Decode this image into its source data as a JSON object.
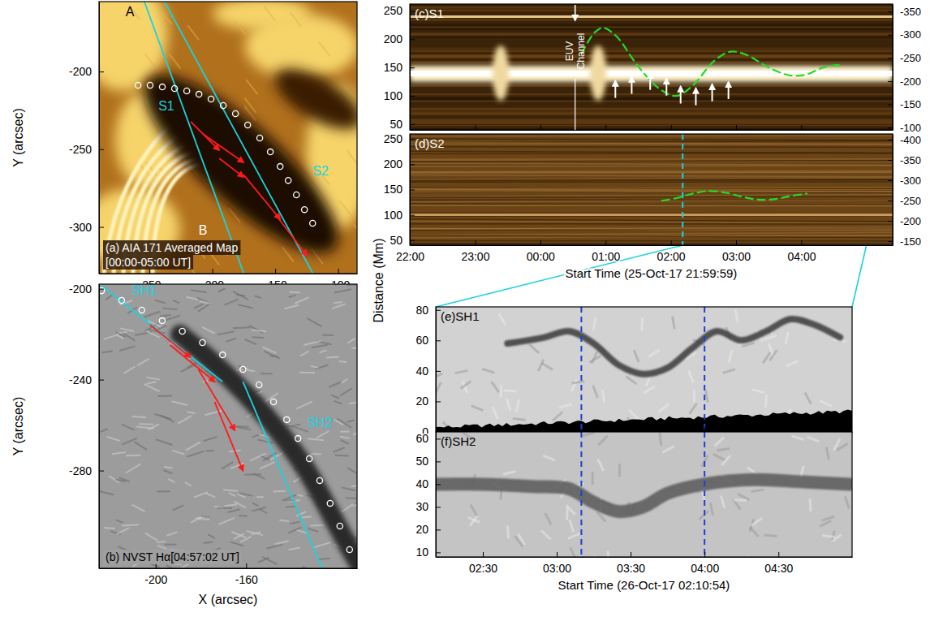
{
  "chart_data": [
    {
      "type": "map",
      "title": "(a) AIA 171 Averaged Map",
      "subtitle": "[00:00-05:00 UT]",
      "y_label": "Y (arcsec)",
      "xlim": [
        -290,
        -85
      ],
      "ylim": [
        -330,
        -155
      ],
      "xticks": [
        -250,
        -200,
        -150,
        -100
      ],
      "yticks": [
        -300,
        -250,
        -200
      ],
      "track": {
        "color": "#ffffff",
        "marker": "circle",
        "x": [
          -259.0,
          -249.4,
          -239.7,
          -230.0,
          -220.3,
          -210.6,
          -201.0,
          -191.3,
          -181.6,
          -171.9,
          -162.3,
          -153.9,
          -146.1,
          -139.7,
          -133.2,
          -126.8,
          -120.3
        ],
        "y": [
          -208.8,
          -208.8,
          -209.9,
          -210.9,
          -212.5,
          -214.6,
          -217.7,
          -221.9,
          -227.1,
          -234.4,
          -242.8,
          -251.7,
          -261.1,
          -270.0,
          -279.3,
          -288.8,
          -297.6
        ]
      },
      "slits": [
        {
          "label": "S1",
          "color": "#19d3e0",
          "x": [
            -254,
            -175
          ],
          "y": [
            -155,
            -330
          ],
          "label_x": -236.5,
          "label_y": -222
        },
        {
          "label": "S2",
          "color": "#19d3e0",
          "x": [
            -238,
            -120
          ],
          "y": [
            -155,
            -330
          ],
          "label_x": -114,
          "label_y": -263.7
        }
      ],
      "arrows": {
        "color": "#ff1a1a",
        "x0": [
          -217.1,
          -207.4,
          -194.5,
          -175.2,
          -149.4
        ],
        "y0": [
          -232.3,
          -240.2,
          -255.8,
          -266.3,
          -292.4
        ],
        "x1": [
          -194.5,
          -175.2,
          -175.2,
          -146.1,
          -124.8
        ],
        "y1": [
          -250.6,
          -258.4,
          -267.9,
          -295.0,
          -318.5
        ]
      },
      "annotations": [
        {
          "text": "A",
          "x": -265.5,
          "y": -161.3,
          "color": "#000000"
        },
        {
          "text": "B",
          "x": -207.5,
          "y": -302,
          "color": "#ffffff"
        }
      ]
    },
    {
      "type": "map",
      "title": "(b) NVST Hα[04:57:02 UT]",
      "x_label": "X (arcsec)",
      "y_label": "Y (arcsec)",
      "xlim": [
        -225,
        -111
      ],
      "ylim": [
        -323,
        -198
      ],
      "xticks": [
        -200,
        -160
      ],
      "yticks": [
        -280,
        -240,
        -200
      ],
      "track": {
        "color": "#ffffff",
        "marker": "circle",
        "x": [
          -223.9,
          -215.0,
          -206.1,
          -197.1,
          -188.2,
          -179.3,
          -170.4,
          -161.4,
          -154.3,
          -147.9,
          -142.1,
          -137.1,
          -132.1,
          -127.5,
          -122.9,
          -118.6,
          -114.3
        ],
        "y": [
          -200.9,
          -205.1,
          -209.4,
          -214.1,
          -218.7,
          -223.7,
          -229.1,
          -235.5,
          -242.3,
          -249.8,
          -257.6,
          -265.9,
          -274.8,
          -284.4,
          -294.4,
          -304.4,
          -314.8
        ]
      },
      "slits": [
        {
          "label": "SH1",
          "color": "#19d3e0",
          "x": [
            -223.9,
            -170.4
          ],
          "y": [
            -198.7,
            -240.9
          ],
          "label_x": -205,
          "label_y": -200.5
        },
        {
          "label": "SH2",
          "color": "#19d3e0",
          "x": [
            -161.4,
            -126.4
          ],
          "y": [
            -240.9,
            -323
          ],
          "label_x": -127.5,
          "label_y": -258.7
        }
      ],
      "arrows": {
        "color": "#ff1a1a",
        "x0": [
          -202.5,
          -193.6,
          -181.1,
          -173.9
        ],
        "y0": [
          -215.9,
          -224.8,
          -235.5,
          -249.8
        ],
        "x1": [
          -184.6,
          -173.9,
          -165.0,
          -161.4
        ],
        "y1": [
          -230.1,
          -240.9,
          -262.3,
          -280.1
        ]
      }
    },
    {
      "type": "timeslice",
      "title": "(c)S1",
      "tick_labels": "y",
      "xlim": [
        "2017-10-25T21:59:59",
        "2017-10-26T05:24:00"
      ],
      "ylim": [
        40,
        262
      ],
      "y2lim": [
        -95,
        -366
      ],
      "xticks": [
        {
          "value": "2017-10-25T22:00:00",
          "label": "22:00"
        },
        {
          "value": "2017-10-25T23:00:00",
          "label": "23:00"
        },
        {
          "value": "2017-10-26T00:00:00",
          "label": "00:00"
        },
        {
          "value": "2017-10-26T01:00:00",
          "label": "01:00"
        },
        {
          "value": "2017-10-26T02:00:00",
          "label": "02:00"
        },
        {
          "value": "2017-10-26T03:00:00",
          "label": "03:00"
        },
        {
          "value": "2017-10-26T04:00:00",
          "label": "04:00"
        }
      ],
      "yticks": [
        50,
        100,
        150,
        200,
        250
      ],
      "y2ticks": [
        -350,
        -300,
        -250,
        -200,
        -150,
        -100
      ],
      "series": [
        {
          "type": "line",
          "color": "#22dd22",
          "line_style": "dashed",
          "x": [
            "2017-10-26T00:38:00",
            "2017-10-26T00:50:00",
            "2017-10-26T00:58:00",
            "2017-10-26T01:10:00",
            "2017-10-26T01:30:00",
            "2017-10-26T01:50:00",
            "2017-10-26T02:05:00",
            "2017-10-26T02:20:00",
            "2017-10-26T02:40:00",
            "2017-10-26T02:55:00",
            "2017-10-26T03:10:00",
            "2017-10-26T03:30:00",
            "2017-10-26T03:50:00",
            "2017-10-26T04:05:00",
            "2017-10-26T04:20:00",
            "2017-10-26T04:35:00"
          ],
          "values": [
            175,
            212,
            220,
            205,
            152,
            112,
            100,
            118,
            162,
            178,
            172,
            150,
            136,
            138,
            150,
            155
          ]
        }
      ],
      "arrows": {
        "color": "#ffffff",
        "x": [
          "2017-10-26T01:09:00",
          "2017-10-26T01:24:00",
          "2017-10-26T01:41:00",
          "2017-10-26T01:56:00",
          "2017-10-26T02:09:00",
          "2017-10-26T02:23:00",
          "2017-10-26T02:38:00",
          "2017-10-26T02:53:00"
        ],
        "y": [
          128,
          135,
          142,
          132,
          118,
          115,
          122,
          126
        ]
      },
      "euv_channel": {
        "text": "EUV Channel",
        "x": "2017-10-26T00:32:00",
        "color": "#ffffff"
      }
    },
    {
      "type": "timeslice",
      "title": "(d)S2",
      "x_label": "Start Time (25-Oct-17 21:59:59)",
      "xlim": [
        "2017-10-25T21:59:59",
        "2017-10-26T05:24:00"
      ],
      "ylim": [
        40,
        260
      ],
      "y2lim": [
        -140,
        -414
      ],
      "xticks": [
        {
          "value": "2017-10-25T22:00:00",
          "label": "22:00"
        },
        {
          "value": "2017-10-25T23:00:00",
          "label": "23:00"
        },
        {
          "value": "2017-10-26T00:00:00",
          "label": "00:00"
        },
        {
          "value": "2017-10-26T01:00:00",
          "label": "01:00"
        },
        {
          "value": "2017-10-26T02:00:00",
          "label": "02:00"
        },
        {
          "value": "2017-10-26T03:00:00",
          "label": "03:00"
        },
        {
          "value": "2017-10-26T04:00:00",
          "label": "04:00"
        }
      ],
      "yticks": [
        50,
        100,
        150,
        200,
        250
      ],
      "y2ticks": [
        -400,
        -350,
        -300,
        -250,
        -200,
        -150
      ],
      "series": [
        {
          "type": "line",
          "color": "#22dd22",
          "line_style": "dashed",
          "x": [
            "2017-10-26T01:52:00",
            "2017-10-26T02:05:00",
            "2017-10-26T02:20:00",
            "2017-10-26T02:35:00",
            "2017-10-26T02:50:00",
            "2017-10-26T03:05:00",
            "2017-10-26T03:20:00",
            "2017-10-26T03:35:00",
            "2017-10-26T03:50:00",
            "2017-10-26T04:05:00"
          ],
          "values": [
            128,
            133,
            142,
            147,
            144,
            136,
            130,
            131,
            137,
            142
          ]
        }
      ],
      "vlines": {
        "color": "#19d3e0",
        "line_style": "dashed",
        "x": [
          "2017-10-26T02:10:54"
        ]
      }
    },
    {
      "type": "timeslice",
      "title": "(e)SH1",
      "y_label": "Distance (Mm)",
      "tick_labels": "y",
      "xlim": [
        "2017-10-26T02:10:54",
        "2017-10-26T04:59:54"
      ],
      "ylim": [
        0,
        82
      ],
      "xticks": [
        {
          "value": "2017-10-26T02:30:00",
          "label": "02:30"
        },
        {
          "value": "2017-10-26T03:00:00",
          "label": "03:00"
        },
        {
          "value": "2017-10-26T03:30:00",
          "label": "03:30"
        },
        {
          "value": "2017-10-26T04:00:00",
          "label": "04:00"
        },
        {
          "value": "2017-10-26T04:30:00",
          "label": "04:30"
        }
      ],
      "yticks": [
        0,
        20,
        40,
        60,
        80
      ],
      "series": [
        {
          "type": "line",
          "color": "#3a3a3a",
          "x": [
            "2017-10-26T02:40:00",
            "2017-10-26T02:55:00",
            "2017-10-26T03:05:00",
            "2017-10-26T03:15:00",
            "2017-10-26T03:25:00",
            "2017-10-26T03:35:00",
            "2017-10-26T03:45:00",
            "2017-10-26T03:55:00",
            "2017-10-26T04:05:00",
            "2017-10-26T04:15:00",
            "2017-10-26T04:25:00",
            "2017-10-26T04:35:00",
            "2017-10-26T04:45:00",
            "2017-10-26T04:55:00"
          ],
          "values": [
            58,
            62,
            66,
            58,
            44,
            38,
            42,
            55,
            66,
            60,
            66,
            74,
            70,
            62
          ]
        }
      ],
      "vlines": {
        "color": "#1f3fd6",
        "line_style": "dashed",
        "x": [
          "2017-10-26T03:10:00",
          "2017-10-26T04:00:00"
        ]
      }
    },
    {
      "type": "timeslice",
      "title": "(f)SH2",
      "x_label": "Start Time (26-Oct-17 02:10:54)",
      "xlim": [
        "2017-10-26T02:10:54",
        "2017-10-26T04:59:54"
      ],
      "ylim": [
        8,
        63
      ],
      "xticks": [
        {
          "value": "2017-10-26T02:30:00",
          "label": "02:30"
        },
        {
          "value": "2017-10-26T03:00:00",
          "label": "03:00"
        },
        {
          "value": "2017-10-26T03:30:00",
          "label": "03:30"
        },
        {
          "value": "2017-10-26T04:00:00",
          "label": "04:00"
        },
        {
          "value": "2017-10-26T04:30:00",
          "label": "04:30"
        }
      ],
      "yticks": [
        10,
        20,
        30,
        40,
        50,
        60
      ],
      "series": [
        {
          "type": "line",
          "color": "#5a5a5a",
          "x": [
            "2017-10-26T02:11:00",
            "2017-10-26T02:30:00",
            "2017-10-26T02:50:00",
            "2017-10-26T03:05:00",
            "2017-10-26T03:15:00",
            "2017-10-26T03:25:00",
            "2017-10-26T03:35:00",
            "2017-10-26T03:45:00",
            "2017-10-26T04:00:00",
            "2017-10-26T04:20:00",
            "2017-10-26T04:40:00",
            "2017-10-26T04:59:00"
          ],
          "values": [
            40,
            40,
            39,
            38,
            32,
            28,
            30,
            36,
            40,
            42,
            41,
            40
          ]
        }
      ],
      "vlines": {
        "color": "#1f3fd6",
        "line_style": "dashed",
        "x": [
          "2017-10-26T03:10:00",
          "2017-10-26T04:00:00"
        ]
      }
    }
  ]
}
